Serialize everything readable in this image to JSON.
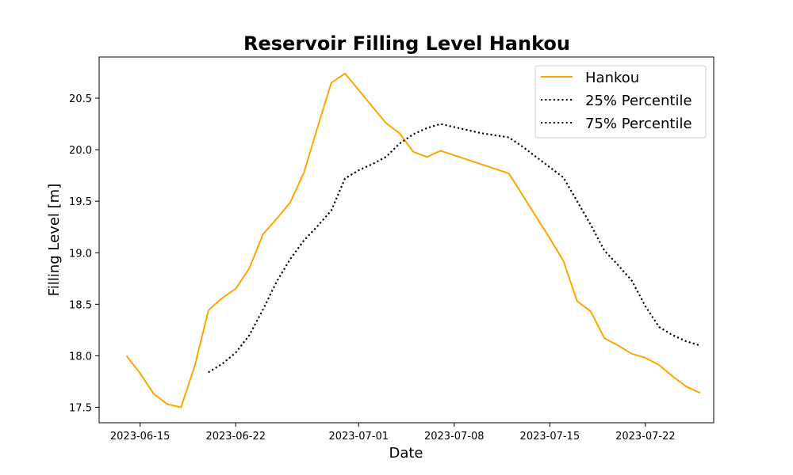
{
  "chart_data": {
    "type": "line",
    "title": "Reservoir Filling Level Hankou",
    "xlabel": "Date",
    "ylabel": "Filling Level [m]",
    "xlim": [
      "2023-06-12",
      "2023-07-27"
    ],
    "ylim": [
      17.35,
      20.9
    ],
    "x_ticks": [
      "2023-06-15",
      "2023-06-22",
      "2023-07-01",
      "2023-07-08",
      "2023-07-15",
      "2023-07-22"
    ],
    "y_ticks": [
      "17.5",
      "18.0",
      "18.5",
      "19.0",
      "19.5",
      "20.0",
      "20.5"
    ],
    "grid": false,
    "legend_position": "top-right",
    "series": [
      {
        "name": "Hankou",
        "color": "#ffa500",
        "style": "solid",
        "x": [
          "2023-06-14",
          "2023-06-15",
          "2023-06-16",
          "2023-06-17",
          "2023-06-18",
          "2023-06-19",
          "2023-06-20",
          "2023-06-21",
          "2023-06-22",
          "2023-06-23",
          "2023-06-24",
          "2023-06-25",
          "2023-06-26",
          "2023-06-27",
          "2023-06-28",
          "2023-06-29",
          "2023-06-30",
          "2023-07-01",
          "2023-07-02",
          "2023-07-03",
          "2023-07-04",
          "2023-07-05",
          "2023-07-06",
          "2023-07-07",
          "2023-07-12",
          "2023-07-13",
          "2023-07-14",
          "2023-07-15",
          "2023-07-16",
          "2023-07-17",
          "2023-07-18",
          "2023-07-19",
          "2023-07-20",
          "2023-07-21",
          "2023-07-22",
          "2023-07-23",
          "2023-07-24",
          "2023-07-25",
          "2023-07-26"
        ],
        "values": [
          18.0,
          17.83,
          17.63,
          17.53,
          17.5,
          17.9,
          18.44,
          18.56,
          18.65,
          18.85,
          19.18,
          19.33,
          19.49,
          19.78,
          20.22,
          20.65,
          20.74,
          20.58,
          20.42,
          20.26,
          20.16,
          19.98,
          19.93,
          19.99,
          19.77,
          19.56,
          19.35,
          19.14,
          18.92,
          18.53,
          18.43,
          18.17,
          18.1,
          18.02,
          17.98,
          17.91,
          17.8,
          17.7,
          17.64
        ]
      },
      {
        "name": "25% Percentile",
        "color": "#000000",
        "style": "dotted",
        "x": [
          "2023-06-20",
          "2023-06-21",
          "2023-06-22",
          "2023-06-23",
          "2023-06-24",
          "2023-06-25",
          "2023-06-26",
          "2023-06-27",
          "2023-06-28",
          "2023-06-29",
          "2023-06-30",
          "2023-07-01",
          "2023-07-02",
          "2023-07-03",
          "2023-07-04",
          "2023-07-05",
          "2023-07-06",
          "2023-07-07",
          "2023-07-08",
          "2023-07-09",
          "2023-07-10",
          "2023-07-11",
          "2023-07-12",
          "2023-07-13",
          "2023-07-14",
          "2023-07-15",
          "2023-07-16",
          "2023-07-17",
          "2023-07-18",
          "2023-07-19",
          "2023-07-20",
          "2023-07-21",
          "2023-07-22",
          "2023-07-23",
          "2023-07-24",
          "2023-07-25",
          "2023-07-26"
        ],
        "values": [
          17.84,
          17.92,
          18.03,
          18.2,
          18.45,
          18.72,
          18.94,
          19.12,
          19.26,
          19.41,
          19.72,
          19.8,
          19.86,
          19.93,
          20.06,
          20.15,
          20.21,
          20.25,
          20.22,
          20.19,
          20.16,
          20.14,
          20.12,
          20.03,
          19.93,
          19.83,
          19.73,
          19.5,
          19.27,
          19.02,
          18.88,
          18.73,
          18.48,
          18.28,
          18.2,
          18.14,
          18.1
        ]
      },
      {
        "name": "75% Percentile",
        "color": "#000000",
        "style": "dotted",
        "x": [
          "2023-06-20",
          "2023-06-21",
          "2023-06-22",
          "2023-06-23",
          "2023-06-24",
          "2023-06-25",
          "2023-06-26",
          "2023-06-27",
          "2023-06-28",
          "2023-06-29",
          "2023-06-30",
          "2023-07-01",
          "2023-07-02",
          "2023-07-03",
          "2023-07-04",
          "2023-07-05",
          "2023-07-06",
          "2023-07-07",
          "2023-07-08",
          "2023-07-09",
          "2023-07-10",
          "2023-07-11",
          "2023-07-12",
          "2023-07-13",
          "2023-07-14",
          "2023-07-15",
          "2023-07-16",
          "2023-07-17",
          "2023-07-18",
          "2023-07-19",
          "2023-07-20",
          "2023-07-21",
          "2023-07-22",
          "2023-07-23",
          "2023-07-24",
          "2023-07-25",
          "2023-07-26"
        ],
        "values": [
          17.84,
          17.92,
          18.03,
          18.2,
          18.45,
          18.72,
          18.94,
          19.12,
          19.26,
          19.41,
          19.72,
          19.8,
          19.86,
          19.93,
          20.06,
          20.15,
          20.21,
          20.25,
          20.22,
          20.19,
          20.16,
          20.14,
          20.12,
          20.03,
          19.93,
          19.83,
          19.73,
          19.5,
          19.27,
          19.02,
          18.88,
          18.73,
          18.48,
          18.28,
          18.2,
          18.14,
          18.1
        ]
      }
    ]
  }
}
